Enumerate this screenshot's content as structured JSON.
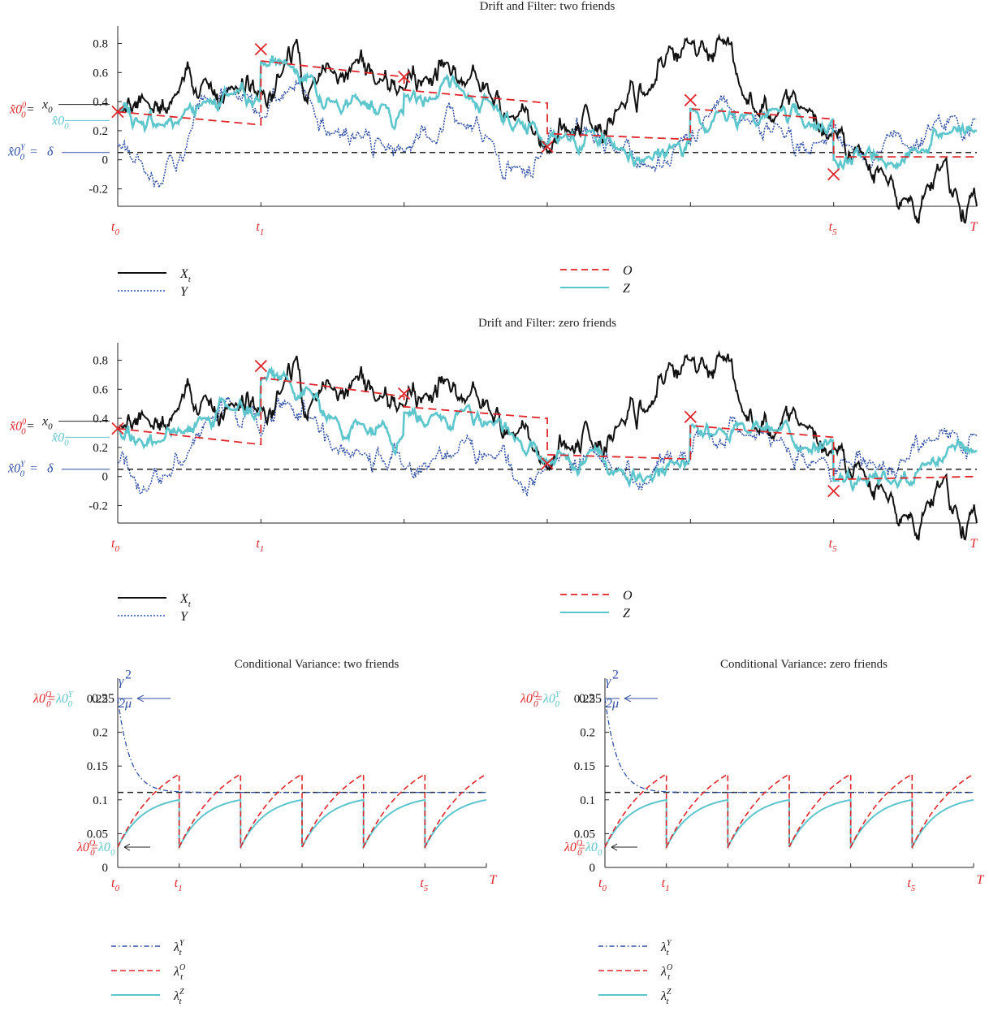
{
  "colors": {
    "X": "#111111",
    "Y": "#2f4fa3",
    "O": "#e0262a",
    "Z": "#5cc6cc",
    "delta": "#222222"
  },
  "chart_data": [
    {
      "type": "line",
      "title": "Drift and Filter: two friends",
      "ylim": [
        -0.32,
        0.92
      ],
      "yticks": [
        "0.8",
        "0.6",
        "0.4",
        "0.2",
        "0",
        "-0.2"
      ],
      "ytick_values": [
        0.8,
        0.6,
        0.4,
        0.2,
        0,
        -0.2
      ],
      "xlabels": [
        "t0",
        "t1",
        "t5",
        "T"
      ],
      "delta": 0.05,
      "left_labels": {
        "x0": "x0",
        "xhat0": "x̂0",
        "xhatO": "x̂0",
        "xhatY": "x̂0",
        "delta": "δ"
      },
      "legend": {
        "X": "Xt",
        "Y": "Y",
        "O": "O",
        "Z": "Z"
      },
      "observations": [
        {
          "t": 0,
          "y": 0.33
        },
        {
          "t": 1,
          "y": 0.76
        },
        {
          "t": 2,
          "y": 0.57
        },
        {
          "t": 3,
          "y": 0.09
        },
        {
          "t": 4,
          "y": 0.41
        },
        {
          "t": 5,
          "y": -0.1
        }
      ],
      "X_knots": [
        [
          0,
          0.33
        ],
        [
          0.2,
          0.4
        ],
        [
          0.4,
          0.45
        ],
        [
          0.6,
          0.55
        ],
        [
          0.8,
          0.5
        ],
        [
          1.0,
          0.48
        ],
        [
          1.15,
          0.6
        ],
        [
          1.25,
          0.83
        ],
        [
          1.35,
          0.5
        ],
        [
          1.5,
          0.6
        ],
        [
          1.65,
          0.67
        ],
        [
          1.8,
          0.52
        ],
        [
          2.0,
          0.48
        ],
        [
          2.15,
          0.57
        ],
        [
          2.3,
          0.67
        ],
        [
          2.45,
          0.55
        ],
        [
          2.6,
          0.45
        ],
        [
          2.75,
          0.3
        ],
        [
          2.9,
          0.18
        ],
        [
          3.0,
          0.05
        ],
        [
          3.15,
          0.2
        ],
        [
          3.3,
          0.25
        ],
        [
          3.5,
          0.35
        ],
        [
          3.7,
          0.45
        ],
        [
          3.85,
          0.78
        ],
        [
          4.0,
          0.8
        ],
        [
          4.1,
          0.75
        ],
        [
          4.2,
          0.85
        ],
        [
          4.35,
          0.5
        ],
        [
          4.45,
          0.33
        ],
        [
          4.6,
          0.3
        ],
        [
          4.8,
          0.35
        ],
        [
          5.0,
          0.2
        ],
        [
          5.2,
          0.05
        ],
        [
          5.35,
          -0.1
        ],
        [
          5.5,
          -0.27
        ],
        [
          5.65,
          -0.18
        ],
        [
          5.75,
          -0.05
        ],
        [
          5.85,
          -0.2
        ],
        [
          5.95,
          -0.25
        ],
        [
          6.0,
          -0.32
        ]
      ],
      "Y_knots": [
        [
          0,
          0.1
        ],
        [
          0.1,
          0.0
        ],
        [
          0.2,
          -0.1
        ],
        [
          0.35,
          0.0
        ],
        [
          0.5,
          0.18
        ],
        [
          0.65,
          0.4
        ],
        [
          0.8,
          0.5
        ],
        [
          0.9,
          0.45
        ],
        [
          1.0,
          0.28
        ],
        [
          1.2,
          0.5
        ],
        [
          1.35,
          0.4
        ],
        [
          1.5,
          0.18
        ],
        [
          1.7,
          0.15
        ],
        [
          1.85,
          0.1
        ],
        [
          2.0,
          0.05
        ],
        [
          2.2,
          0.12
        ],
        [
          2.4,
          0.25
        ],
        [
          2.6,
          0.15
        ],
        [
          2.8,
          -0.05
        ],
        [
          2.95,
          0.02
        ],
        [
          3.1,
          0.15
        ],
        [
          3.3,
          0.2
        ],
        [
          3.5,
          0.05
        ],
        [
          3.7,
          -0.05
        ],
        [
          3.9,
          0.1
        ],
        [
          4.1,
          0.3
        ],
        [
          4.4,
          0.28
        ],
        [
          4.6,
          0.25
        ],
        [
          4.9,
          0.12
        ],
        [
          5.1,
          0.1
        ],
        [
          5.3,
          0.05
        ],
        [
          5.5,
          0.1
        ],
        [
          5.7,
          0.25
        ],
        [
          5.85,
          0.3
        ],
        [
          6.0,
          0.28
        ]
      ],
      "O_segments": [
        [
          0,
          0.33,
          1,
          0.24
        ],
        [
          1,
          0.68,
          2,
          0.57
        ],
        [
          2,
          0.48,
          3,
          0.39
        ],
        [
          3,
          0.18,
          4,
          0.14
        ],
        [
          4,
          0.35,
          5,
          0.28
        ],
        [
          5,
          0.02,
          6,
          0.02
        ]
      ],
      "Z_knots": [
        [
          0,
          0.33
        ],
        [
          0.15,
          0.26
        ],
        [
          0.3,
          0.24
        ],
        [
          0.45,
          0.3
        ],
        [
          0.6,
          0.4
        ],
        [
          0.8,
          0.45
        ],
        [
          1.0,
          0.4
        ],
        [
          1.0,
          0.67
        ],
        [
          1.2,
          0.65
        ],
        [
          1.35,
          0.58
        ],
        [
          1.5,
          0.4
        ],
        [
          1.7,
          0.38
        ],
        [
          1.85,
          0.38
        ],
        [
          2.0,
          0.3
        ],
        [
          2.0,
          0.45
        ],
        [
          2.2,
          0.42
        ],
        [
          2.4,
          0.48
        ],
        [
          2.6,
          0.4
        ],
        [
          2.8,
          0.28
        ],
        [
          2.95,
          0.15
        ],
        [
          3.0,
          0.1
        ],
        [
          3.1,
          0.15
        ],
        [
          3.3,
          0.2
        ],
        [
          3.5,
          0.07
        ],
        [
          3.7,
          0.02
        ],
        [
          3.9,
          0.1
        ],
        [
          4.0,
          0.12
        ],
        [
          4.0,
          0.35
        ],
        [
          4.2,
          0.33
        ],
        [
          4.4,
          0.32
        ],
        [
          4.6,
          0.35
        ],
        [
          4.8,
          0.22
        ],
        [
          5.0,
          0.28
        ],
        [
          5.0,
          0.0
        ],
        [
          5.2,
          0.02
        ],
        [
          5.4,
          -0.02
        ],
        [
          5.6,
          0.05
        ],
        [
          5.8,
          0.18
        ],
        [
          6.0,
          0.2
        ]
      ]
    },
    {
      "type": "line",
      "title": "Drift and Filter: zero friends",
      "ylim": [
        -0.32,
        0.92
      ],
      "yticks": [
        "0.8",
        "0.6",
        "0.4",
        "0.2",
        "0",
        "-0.2"
      ],
      "ytick_values": [
        0.8,
        0.6,
        0.4,
        0.2,
        0,
        -0.2
      ],
      "xlabels": [
        "t0",
        "t1",
        "t5",
        "T"
      ],
      "delta": 0.05,
      "left_labels": {
        "x0": "x0",
        "xhat0": "x̂0",
        "xhatO": "x̂0",
        "xhatY": "x̂0",
        "delta": "δ"
      },
      "legend": {
        "X": "Xt",
        "Y": "Y",
        "O": "O",
        "Z": "Z"
      },
      "observations": [
        {
          "t": 0,
          "y": 0.33
        },
        {
          "t": 1,
          "y": 0.76
        },
        {
          "t": 2,
          "y": 0.57
        },
        {
          "t": 3,
          "y": 0.09
        },
        {
          "t": 4,
          "y": 0.41
        },
        {
          "t": 5,
          "y": -0.1
        }
      ],
      "X_knots": [
        [
          0,
          0.33
        ],
        [
          0.2,
          0.4
        ],
        [
          0.4,
          0.45
        ],
        [
          0.6,
          0.55
        ],
        [
          0.8,
          0.5
        ],
        [
          1.0,
          0.48
        ],
        [
          1.15,
          0.6
        ],
        [
          1.25,
          0.83
        ],
        [
          1.35,
          0.5
        ],
        [
          1.5,
          0.6
        ],
        [
          1.65,
          0.67
        ],
        [
          1.8,
          0.52
        ],
        [
          2.0,
          0.48
        ],
        [
          2.15,
          0.57
        ],
        [
          2.3,
          0.67
        ],
        [
          2.45,
          0.55
        ],
        [
          2.6,
          0.45
        ],
        [
          2.75,
          0.3
        ],
        [
          2.9,
          0.18
        ],
        [
          3.0,
          0.05
        ],
        [
          3.15,
          0.2
        ],
        [
          3.3,
          0.25
        ],
        [
          3.5,
          0.35
        ],
        [
          3.7,
          0.45
        ],
        [
          3.85,
          0.78
        ],
        [
          4.0,
          0.8
        ],
        [
          4.1,
          0.75
        ],
        [
          4.2,
          0.85
        ],
        [
          4.35,
          0.5
        ],
        [
          4.45,
          0.33
        ],
        [
          4.6,
          0.3
        ],
        [
          4.8,
          0.35
        ],
        [
          5.0,
          0.2
        ],
        [
          5.2,
          0.05
        ],
        [
          5.35,
          -0.1
        ],
        [
          5.5,
          -0.27
        ],
        [
          5.65,
          -0.18
        ],
        [
          5.75,
          -0.05
        ],
        [
          5.85,
          -0.2
        ],
        [
          5.95,
          -0.25
        ],
        [
          6.0,
          -0.32
        ]
      ],
      "Y_knots": [
        [
          0,
          0.1
        ],
        [
          0.1,
          0.0
        ],
        [
          0.2,
          -0.1
        ],
        [
          0.35,
          0.0
        ],
        [
          0.5,
          0.18
        ],
        [
          0.65,
          0.4
        ],
        [
          0.8,
          0.5
        ],
        [
          0.9,
          0.45
        ],
        [
          1.0,
          0.28
        ],
        [
          1.2,
          0.5
        ],
        [
          1.35,
          0.4
        ],
        [
          1.5,
          0.18
        ],
        [
          1.7,
          0.15
        ],
        [
          1.85,
          0.1
        ],
        [
          2.0,
          0.05
        ],
        [
          2.2,
          0.12
        ],
        [
          2.4,
          0.25
        ],
        [
          2.6,
          0.15
        ],
        [
          2.8,
          -0.05
        ],
        [
          2.95,
          0.02
        ],
        [
          3.1,
          0.15
        ],
        [
          3.3,
          0.2
        ],
        [
          3.5,
          0.05
        ],
        [
          3.7,
          -0.05
        ],
        [
          3.9,
          0.1
        ],
        [
          4.1,
          0.3
        ],
        [
          4.4,
          0.28
        ],
        [
          4.6,
          0.25
        ],
        [
          4.9,
          0.12
        ],
        [
          5.1,
          0.1
        ],
        [
          5.3,
          0.05
        ],
        [
          5.5,
          0.1
        ],
        [
          5.7,
          0.25
        ],
        [
          5.85,
          0.3
        ],
        [
          6.0,
          0.28
        ]
      ],
      "O_segments": [
        [
          0,
          0.33,
          1,
          0.22
        ],
        [
          1,
          0.68,
          2,
          0.55
        ],
        [
          2,
          0.48,
          3,
          0.4
        ],
        [
          3,
          0.15,
          4,
          0.12
        ],
        [
          4,
          0.35,
          5,
          0.27
        ],
        [
          5,
          -0.02,
          6,
          0.0
        ]
      ],
      "Z_knots": [
        [
          0,
          0.33
        ],
        [
          0.15,
          0.26
        ],
        [
          0.3,
          0.24
        ],
        [
          0.45,
          0.3
        ],
        [
          0.6,
          0.4
        ],
        [
          0.8,
          0.46
        ],
        [
          1.0,
          0.42
        ],
        [
          1.0,
          0.67
        ],
        [
          1.2,
          0.65
        ],
        [
          1.35,
          0.58
        ],
        [
          1.5,
          0.4
        ],
        [
          1.7,
          0.36
        ],
        [
          1.85,
          0.38
        ],
        [
          2.0,
          0.3
        ],
        [
          2.0,
          0.44
        ],
        [
          2.2,
          0.42
        ],
        [
          2.4,
          0.46
        ],
        [
          2.6,
          0.38
        ],
        [
          2.8,
          0.25
        ],
        [
          2.95,
          0.12
        ],
        [
          3.0,
          0.1
        ],
        [
          3.1,
          0.15
        ],
        [
          3.3,
          0.18
        ],
        [
          3.5,
          0.05
        ],
        [
          3.7,
          0.0
        ],
        [
          3.9,
          0.1
        ],
        [
          4.0,
          0.12
        ],
        [
          4.0,
          0.35
        ],
        [
          4.2,
          0.33
        ],
        [
          4.4,
          0.3
        ],
        [
          4.6,
          0.32
        ],
        [
          4.8,
          0.2
        ],
        [
          5.0,
          0.25
        ],
        [
          5.0,
          -0.03
        ],
        [
          5.2,
          -0.02
        ],
        [
          5.4,
          -0.05
        ],
        [
          5.6,
          0.05
        ],
        [
          5.8,
          0.2
        ],
        [
          6.0,
          0.18
        ]
      ]
    },
    {
      "type": "line",
      "title": "Conditional Variance: two friends",
      "ylim": [
        0,
        0.28
      ],
      "yticks": [
        "0.25",
        "0.2",
        "0.15",
        "0.1",
        "0.05",
        "0"
      ],
      "ytick_values": [
        0.25,
        0.2,
        0.15,
        0.1,
        0.05,
        0
      ],
      "xlabels": [
        "t0",
        "t1",
        "t5",
        "T"
      ],
      "steady_state": 0.111,
      "lambda_Y0": 0.25,
      "lambda_min": 0.03,
      "lambda_O_peak": 0.138,
      "lambda_Z_peak": 0.1,
      "top_left_label": {
        "lO": "λ0",
        "eq": "=",
        "lY": "λ0",
        "val": "0.25",
        "frac": "γ²/2μ"
      },
      "bottom_left_label": {
        "lO": "λ0",
        "eq": "=",
        "lZ": "λ0"
      },
      "legend": {
        "Y": "λt",
        "O": "λt",
        "Z": "λt"
      }
    },
    {
      "type": "line",
      "title": "Conditional Variance: zero friends",
      "ylim": [
        0,
        0.28
      ],
      "yticks": [
        "0.25",
        "0.2",
        "0.15",
        "0.1",
        "0.05",
        "0"
      ],
      "ytick_values": [
        0.25,
        0.2,
        0.15,
        0.1,
        0.05,
        0
      ],
      "xlabels": [
        "t0",
        "t1",
        "t5",
        "T"
      ],
      "steady_state": 0.111,
      "lambda_Y0": 0.25,
      "lambda_min": 0.03,
      "lambda_O_peak": 0.138,
      "lambda_Z_peak": 0.1,
      "top_left_label": {
        "lO": "λ0",
        "eq": "=",
        "lY": "λ0",
        "val": "0.25",
        "frac": "γ²/2μ"
      },
      "bottom_left_label": {
        "lO": "λ0",
        "eq": "=",
        "lZ": "λ0"
      },
      "legend": {
        "Y": "λt",
        "O": "λt",
        "Z": "λt"
      }
    }
  ]
}
